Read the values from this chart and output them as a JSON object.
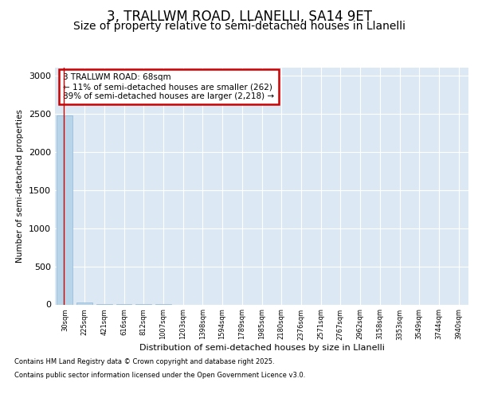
{
  "title_line1": "3, TRALLWM ROAD, LLANELLI, SA14 9ET",
  "title_line2": "Size of property relative to semi-detached houses in Llanelli",
  "xlabel": "Distribution of semi-detached houses by size in Llanelli",
  "ylabel": "Number of semi-detached properties",
  "annotation_title": "3 TRALLWM ROAD: 68sqm",
  "annotation_line2": "← 11% of semi-detached houses are smaller (262)",
  "annotation_line3": "89% of semi-detached houses are larger (2,218) →",
  "footer_line1": "Contains HM Land Registry data © Crown copyright and database right 2025.",
  "footer_line2": "Contains public sector information licensed under the Open Government Licence v3.0.",
  "categories": [
    "30sqm",
    "225sqm",
    "421sqm",
    "616sqm",
    "812sqm",
    "1007sqm",
    "1203sqm",
    "1398sqm",
    "1594sqm",
    "1789sqm",
    "1985sqm",
    "2180sqm",
    "2376sqm",
    "2571sqm",
    "2767sqm",
    "2962sqm",
    "3158sqm",
    "3353sqm",
    "3549sqm",
    "3744sqm",
    "3940sqm"
  ],
  "values": [
    2480,
    30,
    2,
    1,
    1,
    1,
    0,
    0,
    0,
    0,
    0,
    0,
    0,
    0,
    0,
    0,
    0,
    0,
    0,
    0,
    0
  ],
  "bar_color": "#b8d4e8",
  "bar_edge_color": "#90b8d8",
  "background_color": "#ffffff",
  "plot_bg_color": "#dce8f4",
  "grid_color": "#ffffff",
  "ylim": [
    0,
    3100
  ],
  "yticks": [
    0,
    500,
    1000,
    1500,
    2000,
    2500,
    3000
  ],
  "title_fontsize": 12,
  "subtitle_fontsize": 10,
  "annotation_box_edge_color": "#cc0000",
  "red_line_x": -0.07
}
